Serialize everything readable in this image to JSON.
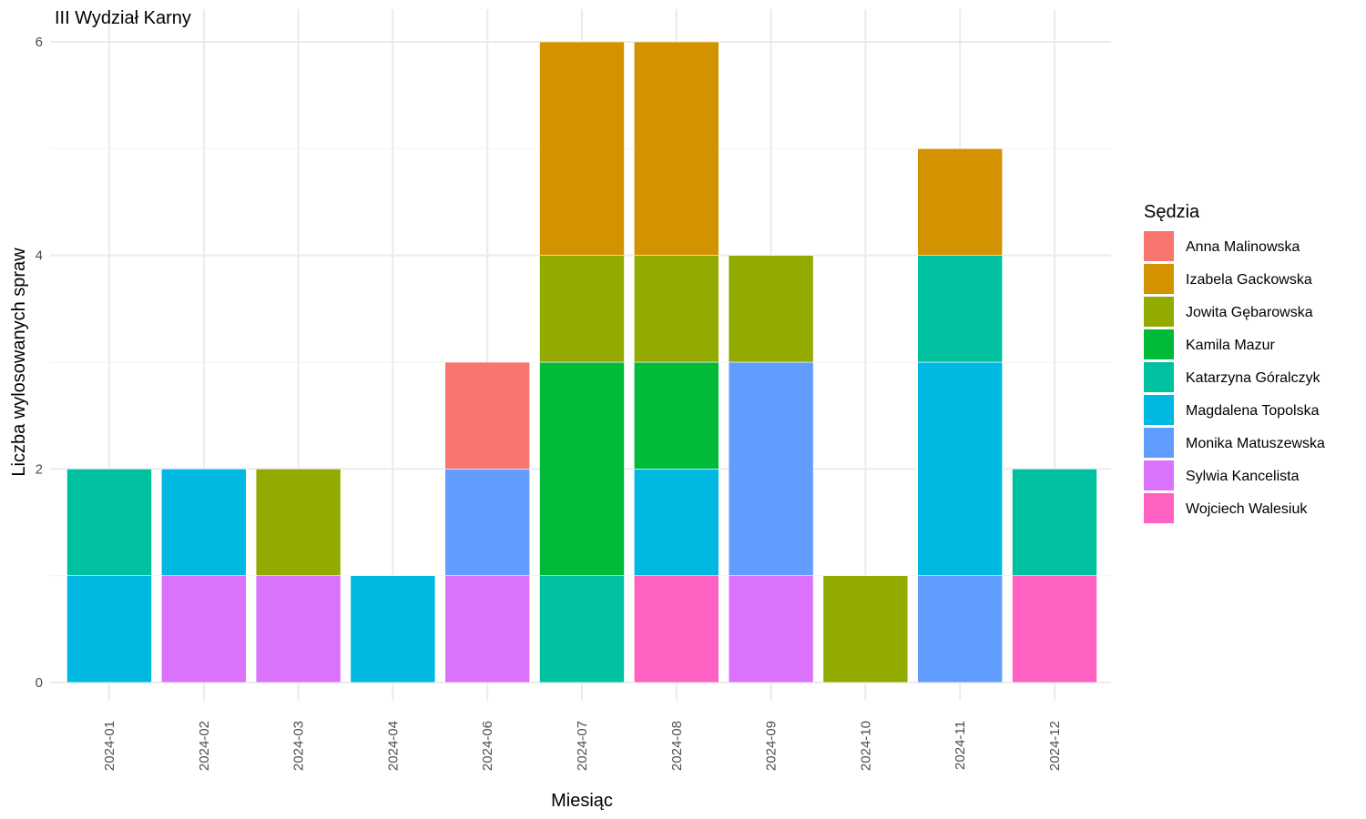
{
  "chart_data": {
    "type": "bar",
    "stacked": true,
    "title": "III Wydział Karny",
    "xlabel": "Miesiąc",
    "ylabel": "Liczba wylosowanych spraw",
    "ylim": [
      0,
      6
    ],
    "yticks": [
      "0",
      "2",
      "4",
      "6"
    ],
    "grid": true,
    "legend_title": "Sędzia",
    "legend_position": "right",
    "categories": [
      "2024-01",
      "2024-02",
      "2024-03",
      "2024-04",
      "2024-06",
      "2024-07",
      "2024-08",
      "2024-09",
      "2024-10",
      "2024-11",
      "2024-12"
    ],
    "series": [
      {
        "name": "Anna Malinowska",
        "color": "#F8766D",
        "values": [
          0,
          0,
          0,
          0,
          1,
          0,
          0,
          0,
          0,
          0,
          0
        ]
      },
      {
        "name": "Izabela Gackowska",
        "color": "#D39200",
        "values": [
          0,
          0,
          0,
          0,
          0,
          2,
          2,
          0,
          0,
          1,
          0
        ]
      },
      {
        "name": "Jowita Gębarowska",
        "color": "#93AA00",
        "values": [
          0,
          0,
          1,
          0,
          0,
          1,
          1,
          1,
          1,
          0,
          0
        ]
      },
      {
        "name": "Kamila Mazur",
        "color": "#00BA38",
        "values": [
          0,
          0,
          0,
          0,
          0,
          2,
          1,
          0,
          0,
          0,
          0
        ]
      },
      {
        "name": "Katarzyna Góralczyk",
        "color": "#00C19F",
        "values": [
          1,
          0,
          0,
          0,
          0,
          1,
          0,
          0,
          0,
          1,
          1
        ]
      },
      {
        "name": "Magdalena Topolska",
        "color": "#00B9E3",
        "values": [
          1,
          1,
          0,
          1,
          0,
          0,
          1,
          0,
          0,
          2,
          0
        ]
      },
      {
        "name": "Monika Matuszewska",
        "color": "#619CFF",
        "values": [
          0,
          0,
          0,
          0,
          1,
          0,
          0,
          2,
          0,
          1,
          0
        ]
      },
      {
        "name": "Sylwia Kancelista",
        "color": "#DB72FB",
        "values": [
          0,
          1,
          1,
          0,
          1,
          0,
          0,
          1,
          0,
          0,
          0
        ]
      },
      {
        "name": "Wojciech Walesiuk",
        "color": "#FF61C3",
        "values": [
          0,
          0,
          0,
          0,
          0,
          0,
          1,
          0,
          0,
          0,
          1
        ]
      }
    ]
  }
}
